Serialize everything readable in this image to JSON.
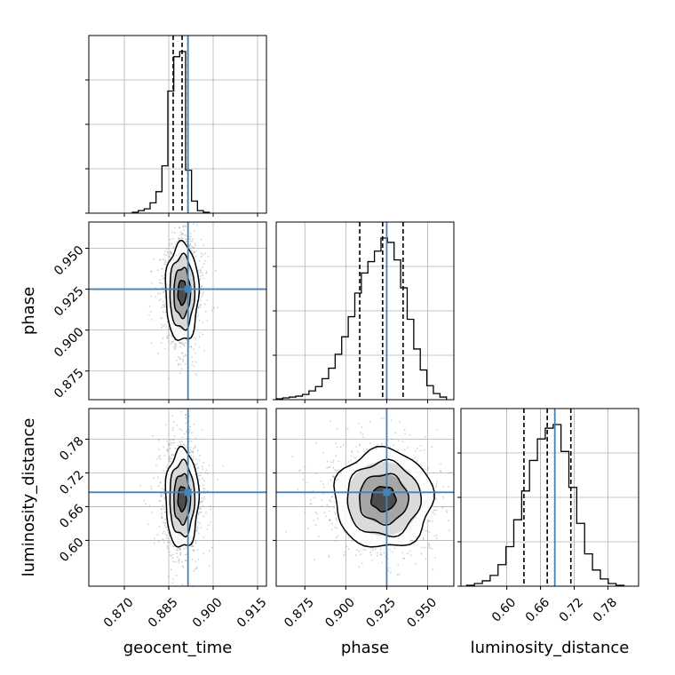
{
  "figure": {
    "colors": {
      "truth": "#4682b4",
      "hist": "#000000",
      "grid": "#b0b0b0",
      "samples": "#9a9a9a"
    },
    "params": [
      "geocent_time",
      "phase",
      "luminosity_distance"
    ]
  },
  "chart_data": {
    "type": "corner",
    "grid": true,
    "parameters": [
      {
        "name": "geocent_time",
        "xlabel": "geocent_time",
        "range": [
          0.858,
          0.918
        ],
        "ticks": [
          0.87,
          0.885,
          0.9,
          0.915
        ],
        "tick_labels": [
          "0.870",
          "0.885",
          "0.900",
          "0.915"
        ],
        "truth": 0.8915,
        "quantiles": [
          0.8865,
          0.8895,
          0.8915
        ],
        "hist": {
          "edges": [
            0.8727,
            0.8747,
            0.8767,
            0.8787,
            0.8807,
            0.8827,
            0.8847,
            0.8867,
            0.8887,
            0.8907,
            0.8927,
            0.8947,
            0.8967,
            0.8987
          ],
          "counts": [
            1,
            3,
            5,
            12,
            25,
            55,
            142,
            182,
            188,
            50,
            14,
            3,
            1
          ]
        }
      },
      {
        "name": "phase",
        "xlabel": "phase",
        "ylabel": "phase",
        "range": [
          0.8575,
          0.966
        ],
        "ticks": [
          0.875,
          0.9,
          0.925,
          0.95
        ],
        "tick_labels": [
          "0.875",
          "0.900",
          "0.925",
          "0.950"
        ],
        "truth": 0.925,
        "quantiles": [
          0.9085,
          0.9225,
          0.935
        ],
        "hist": {
          "edges": [
            0.8575,
            0.8615,
            0.8655,
            0.8695,
            0.8735,
            0.8775,
            0.8815,
            0.8855,
            0.8895,
            0.8935,
            0.8975,
            0.9015,
            0.9055,
            0.9095,
            0.9135,
            0.9175,
            0.9215,
            0.9255,
            0.9295,
            0.9335,
            0.9375,
            0.9415,
            0.9455,
            0.9495,
            0.9535,
            0.9575,
            0.9615
          ],
          "counts": [
            1,
            2,
            3,
            4,
            6,
            10,
            15,
            24,
            36,
            52,
            72,
            95,
            122,
            145,
            158,
            170,
            185,
            180,
            160,
            128,
            92,
            58,
            34,
            16,
            7,
            3
          ]
        }
      },
      {
        "name": "luminosity_distance",
        "xlabel": "luminosity_distance",
        "ylabel": "luminosity_distance",
        "range": [
          0.5185,
          0.8345
        ],
        "ticks": [
          0.6,
          0.66,
          0.72,
          0.78
        ],
        "tick_labels": [
          "0.60",
          "0.66",
          "0.72",
          "0.78"
        ],
        "truth": 0.6855,
        "quantiles": [
          0.6305,
          0.672,
          0.714
        ],
        "hist": {
          "edges": [
            0.5285,
            0.5425,
            0.5565,
            0.5705,
            0.5845,
            0.5985,
            0.6125,
            0.6265,
            0.6405,
            0.6545,
            0.6685,
            0.6825,
            0.6965,
            0.7105,
            0.7245,
            0.7385,
            0.7525,
            0.7665,
            0.7805,
            0.7945,
            0.8085
          ],
          "counts": [
            1,
            3,
            6,
            12,
            24,
            44,
            74,
            106,
            140,
            164,
            176,
            180,
            150,
            110,
            70,
            36,
            18,
            8,
            3,
            1
          ]
        }
      }
    ],
    "pairs": [
      {
        "x": "geocent_time",
        "y": "phase",
        "center": [
          0.8895,
          0.923
        ],
        "spread": [
          0.0028,
          0.015
        ],
        "truth": [
          0.8915,
          0.925
        ],
        "contour_levels_sigma": [
          0.5,
          1.0,
          1.5,
          2.0
        ]
      },
      {
        "x": "geocent_time",
        "y": "luminosity_distance",
        "center": [
          0.8895,
          0.674
        ],
        "spread": [
          0.0028,
          0.044
        ],
        "truth": [
          0.8915,
          0.6855
        ],
        "contour_levels_sigma": [
          0.5,
          1.0,
          1.5,
          2.0
        ]
      },
      {
        "x": "phase",
        "y": "luminosity_distance",
        "center": [
          0.923,
          0.674
        ],
        "spread": [
          0.015,
          0.044
        ],
        "truth": [
          0.925,
          0.6855
        ],
        "contour_levels_sigma": [
          0.5,
          1.0,
          1.5,
          2.0
        ]
      }
    ]
  }
}
